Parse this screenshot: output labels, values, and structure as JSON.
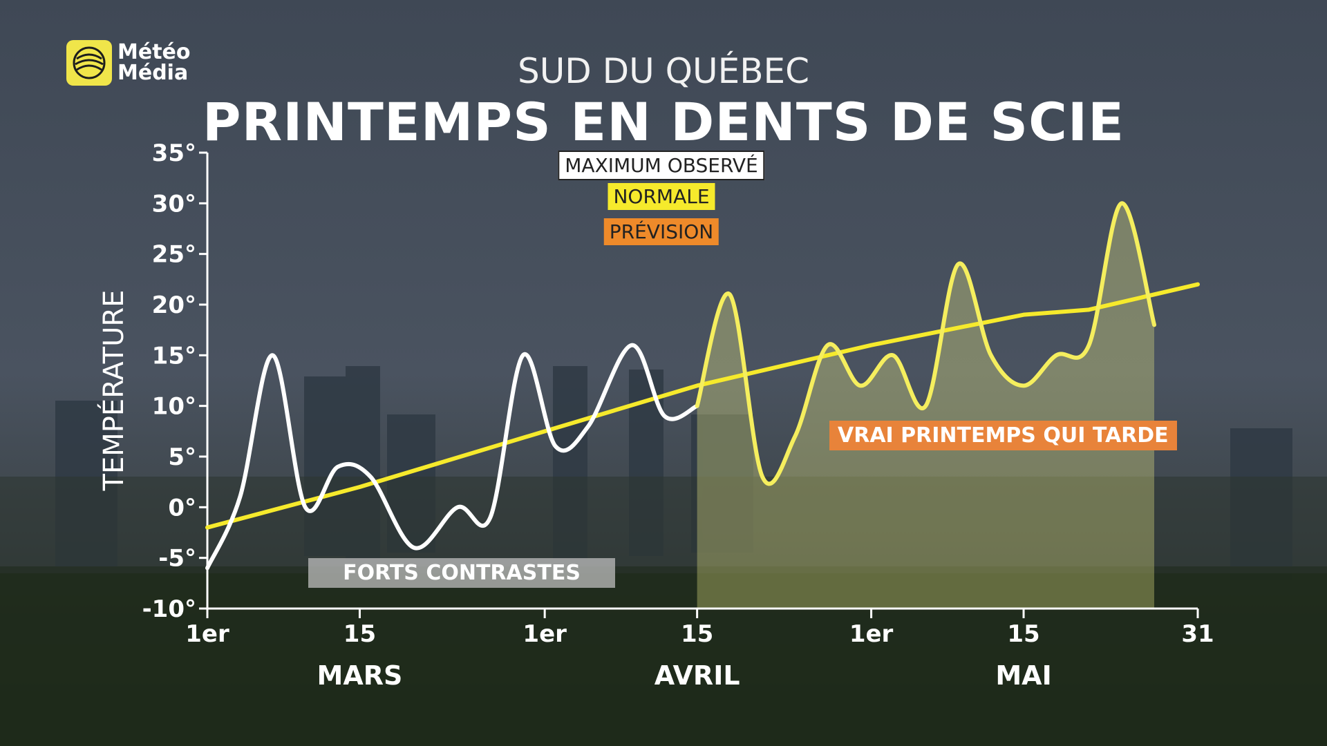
{
  "brand": {
    "line1": "Météo",
    "line2": "Média",
    "logo_icon": "globe-icon",
    "logo_color": "#f0e54a"
  },
  "header": {
    "subtitle": "SUD DU QUÉBEC",
    "title": "PRINTEMPS EN DENTS DE SCIE"
  },
  "legend": {
    "observed": "MAXIMUM OBSERVÉ",
    "normal": "NORMALE",
    "forecast": "PRÉVISION"
  },
  "annotations": {
    "contrasts": "FORTS CONTRASTES",
    "late_spring": "VRAI PRINTEMPS QUI TARDE"
  },
  "chart_data": {
    "type": "line",
    "title": "PRINTEMPS EN DENTS DE SCIE",
    "subtitle": "SUD DU QUÉBEC",
    "ylabel": "TEMPÉRATURE",
    "xlabel": "",
    "ylim": [
      -10,
      35
    ],
    "xlim": [
      1,
      92
    ],
    "y_ticks": [
      -10,
      -5,
      0,
      5,
      10,
      15,
      20,
      25,
      30,
      35
    ],
    "y_tick_labels": [
      "-10°",
      "-5°",
      "0°",
      "5°",
      "10°",
      "15°",
      "20°",
      "25°",
      "30°",
      "35°"
    ],
    "x_ticks": [
      {
        "day": 1,
        "label": "1er"
      },
      {
        "day": 15,
        "label": "15"
      },
      {
        "day": 32,
        "label": "1er"
      },
      {
        "day": 46,
        "label": "15"
      },
      {
        "day": 62,
        "label": "1er"
      },
      {
        "day": 76,
        "label": "15"
      },
      {
        "day": 92,
        "label": "31"
      }
    ],
    "months": [
      {
        "label": "MARS",
        "center_day": 15
      },
      {
        "label": "AVRIL",
        "center_day": 46
      },
      {
        "label": "MAI",
        "center_day": 76
      }
    ],
    "grid": false,
    "legend_position": "top-center",
    "series": [
      {
        "name": "MAXIMUM OBSERVÉ",
        "color": "#ffffff",
        "points": [
          [
            1,
            -6
          ],
          [
            4,
            1
          ],
          [
            7,
            15
          ],
          [
            10,
            0
          ],
          [
            13,
            4
          ],
          [
            16,
            3
          ],
          [
            20,
            -4
          ],
          [
            24,
            0
          ],
          [
            27,
            -1
          ],
          [
            30,
            15
          ],
          [
            33,
            6
          ],
          [
            36,
            8
          ],
          [
            40,
            16
          ],
          [
            43,
            9
          ],
          [
            46,
            10
          ]
        ]
      },
      {
        "name": "PRÉVISION",
        "color": "#f5ee5e",
        "fill": "rgba(225,225,130,0.35)",
        "points": [
          [
            46,
            10
          ],
          [
            49,
            21
          ],
          [
            52,
            3
          ],
          [
            55,
            7
          ],
          [
            58,
            16
          ],
          [
            61,
            12
          ],
          [
            64,
            15
          ],
          [
            67,
            10
          ],
          [
            70,
            24
          ],
          [
            73,
            15
          ],
          [
            76,
            12
          ],
          [
            79,
            15
          ],
          [
            82,
            16
          ],
          [
            85,
            30
          ],
          [
            88,
            18
          ]
        ]
      },
      {
        "name": "NORMALE",
        "color": "#f6ea2c",
        "points": [
          [
            1,
            -2
          ],
          [
            15,
            2
          ],
          [
            32,
            7.5
          ],
          [
            46,
            12
          ],
          [
            62,
            16
          ],
          [
            76,
            19
          ],
          [
            82,
            19.5
          ],
          [
            92,
            22
          ]
        ]
      }
    ]
  }
}
